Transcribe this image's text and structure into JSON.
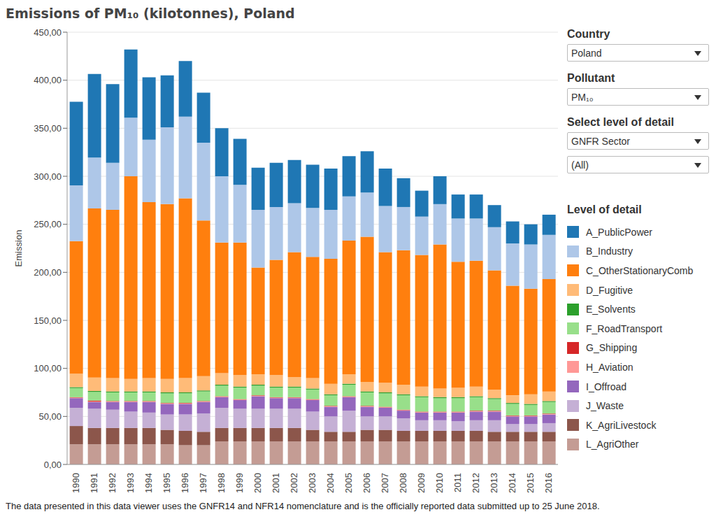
{
  "chart_data": {
    "type": "bar",
    "title": "Emissions of PM₁₀ (kilotonnes), Poland",
    "y_label": "Emission",
    "legend_title": "Level of detail",
    "stacked": true,
    "grid": true,
    "legend": "right",
    "ylim": [
      0,
      450
    ],
    "yticks": [
      {
        "value": 0,
        "label": "0,00"
      },
      {
        "value": 50,
        "label": "50,00"
      },
      {
        "value": 100,
        "label": "100,00"
      },
      {
        "value": 150,
        "label": "150,00"
      },
      {
        "value": 200,
        "label": "200,00"
      },
      {
        "value": 250,
        "label": "250,00"
      },
      {
        "value": 300,
        "label": "300,00"
      },
      {
        "value": 350,
        "label": "350,00"
      },
      {
        "value": 400,
        "label": "400,00"
      },
      {
        "value": 450,
        "label": "450,00"
      }
    ],
    "categories": [
      "1990",
      "1991",
      "1992",
      "1993",
      "1994",
      "1995",
      "1996",
      "1997",
      "1998",
      "1999",
      "2000",
      "2001",
      "2002",
      "2003",
      "2004",
      "2005",
      "2006",
      "2007",
      "2008",
      "2009",
      "2010",
      "2011",
      "2012",
      "2013",
      "2014",
      "2015",
      "2016"
    ],
    "series": [
      {
        "name": "A_PublicPower",
        "color": "#1f77b4",
        "values": [
          87,
          87,
          82,
          71,
          65,
          54,
          58,
          52,
          50,
          48,
          44,
          46,
          45,
          45,
          43,
          42,
          43,
          39,
          30,
          27,
          29,
          25,
          25,
          23,
          23,
          21,
          21
        ]
      },
      {
        "name": "B_Industry",
        "color": "#aec7e8",
        "values": [
          58,
          53,
          49,
          61,
          65,
          80,
          85,
          81,
          69,
          60,
          60,
          55,
          51,
          51,
          51,
          46,
          46,
          48,
          45,
          40,
          42,
          45,
          44,
          45,
          44,
          46,
          46
        ]
      },
      {
        "name": "C_OtherStationaryComb",
        "color": "#ff7f0e",
        "values": [
          138,
          176,
          175,
          211,
          183,
          182,
          187,
          162,
          136,
          138,
          111,
          120,
          130,
          126,
          130,
          139,
          151,
          136,
          140,
          137,
          150,
          131,
          131,
          124,
          114,
          110,
          117
        ]
      },
      {
        "name": "D_Fugitive",
        "color": "#ffbb78",
        "values": [
          14,
          14,
          14,
          13,
          14,
          14,
          15,
          15,
          12,
          12,
          11,
          12,
          10,
          11,
          11,
          10,
          10,
          10,
          10,
          10,
          9,
          10,
          10,
          9,
          8,
          10,
          10
        ]
      },
      {
        "name": "E_Solvents",
        "color": "#2ca02c",
        "values": [
          1,
          1,
          1,
          1,
          1,
          1,
          1,
          1,
          1,
          1,
          1,
          1,
          1,
          1,
          1,
          1,
          1,
          1,
          1,
          1,
          1,
          1,
          1,
          1,
          1,
          1,
          1
        ]
      },
      {
        "name": "F_RoadTransport",
        "color": "#98df8a",
        "values": [
          9.5,
          9,
          9,
          9,
          9,
          10,
          10,
          10,
          11,
          12,
          10,
          10,
          10,
          10,
          11,
          12,
          14,
          14,
          15,
          15,
          14,
          14,
          14,
          12,
          12,
          11,
          12
        ]
      },
      {
        "name": "G_Shipping",
        "color": "#d62728",
        "values": [
          0.5,
          1,
          0.5,
          0.5,
          0.5,
          0.5,
          0.5,
          0.5,
          0.5,
          0.5,
          0.5,
          0.5,
          0.5,
          0.5,
          0.5,
          0.5,
          0.5,
          0.5,
          0.5,
          0.5,
          0.5,
          0.5,
          0.5,
          0.5,
          0.5,
          0.5,
          0.5
        ]
      },
      {
        "name": "H_Aviation",
        "color": "#ff9896",
        "values": [
          0.5,
          0.5,
          0.5,
          0.5,
          0.5,
          0.5,
          0.5,
          0.5,
          0.5,
          0.5,
          0.5,
          0.5,
          0.5,
          0.5,
          0.5,
          0.5,
          0.5,
          0.5,
          0.5,
          0.5,
          0.5,
          0.5,
          0.5,
          0.5,
          0.5,
          0.5,
          0.5
        ]
      },
      {
        "name": "I_Offroad",
        "color": "#9467bd",
        "values": [
          10,
          7,
          8,
          10,
          11,
          11,
          11,
          12,
          11,
          9,
          13,
          11,
          11,
          12,
          10,
          14,
          10,
          9,
          8,
          8,
          8,
          9,
          9,
          9,
          8,
          8,
          9
        ]
      },
      {
        "name": "J_Waste",
        "color": "#c5b0d5",
        "values": [
          19,
          20,
          19,
          17,
          16,
          16,
          17,
          19,
          21,
          20,
          20,
          20,
          20,
          19,
          16,
          22,
          14,
          14,
          13,
          11,
          11,
          10,
          11,
          12,
          8,
          8,
          9
        ]
      },
      {
        "name": "K_AgriLivestock",
        "color": "#8c564b",
        "values": [
          19,
          17,
          17,
          17,
          17,
          15,
          15,
          14,
          14,
          14,
          14,
          14,
          14,
          12,
          10,
          10,
          12,
          12,
          11,
          11,
          11,
          11,
          11,
          10,
          10,
          10,
          10
        ]
      },
      {
        "name": "L_AgriOther",
        "color": "#c49c94",
        "values": [
          21,
          21,
          21,
          21,
          21,
          21,
          20,
          20,
          24,
          24,
          24,
          24,
          24,
          24,
          24,
          24,
          24,
          24,
          24,
          24,
          24,
          24,
          24,
          24,
          24,
          24,
          24
        ]
      }
    ]
  },
  "controls": [
    {
      "label": "Country",
      "value": "Poland"
    },
    {
      "label": "Pollutant",
      "value": "PM₁₀"
    },
    {
      "label": "Select level of detail",
      "value": "GNFR Sector"
    },
    {
      "value": "(All)"
    }
  ],
  "footnote": "The data presented in this data viewer uses the GNFR14 and NFR14 nomenclature and is the officially reported data submitted up to 25 June 2018."
}
